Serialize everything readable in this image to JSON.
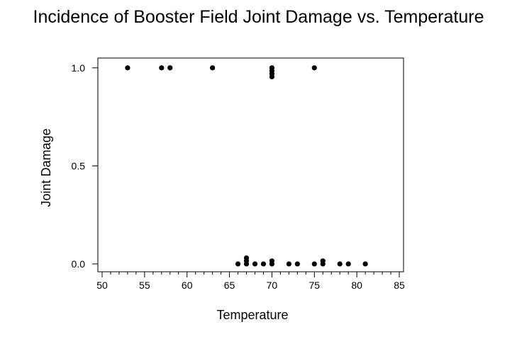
{
  "chart_data": {
    "type": "scatter",
    "title": "Incidence of Booster Field Joint Damage vs. Temperature",
    "xlabel": "Temperature",
    "ylabel": "Joint Damage",
    "xlim": [
      49.5,
      85.5
    ],
    "ylim": [
      -0.04,
      1.05
    ],
    "xticks": [
      50,
      55,
      60,
      65,
      70,
      75,
      80,
      85
    ],
    "xtick_labels": [
      "50",
      "55",
      "60",
      "65",
      "70",
      "75",
      "80",
      "85"
    ],
    "yticks": [
      0.0,
      0.5,
      1.0
    ],
    "ytick_labels": [
      "0.0",
      "0.5",
      "1.0"
    ],
    "grid": false,
    "legend": "none",
    "marker_color": "#000000",
    "points": [
      {
        "x": 53,
        "y": 1.0
      },
      {
        "x": 57,
        "y": 1.0
      },
      {
        "x": 58,
        "y": 1.0
      },
      {
        "x": 63,
        "y": 1.0
      },
      {
        "x": 70,
        "y": 1.0
      },
      {
        "x": 70,
        "y": 1.0
      },
      {
        "x": 70,
        "y": 1.0
      },
      {
        "x": 70,
        "y": 1.0
      },
      {
        "x": 75,
        "y": 1.0
      },
      {
        "x": 66,
        "y": 0.0
      },
      {
        "x": 67,
        "y": 0.0
      },
      {
        "x": 67,
        "y": 0.0
      },
      {
        "x": 67,
        "y": 0.0
      },
      {
        "x": 68,
        "y": 0.0
      },
      {
        "x": 69,
        "y": 0.0
      },
      {
        "x": 70,
        "y": 0.0
      },
      {
        "x": 70,
        "y": 0.0
      },
      {
        "x": 72,
        "y": 0.0
      },
      {
        "x": 73,
        "y": 0.0
      },
      {
        "x": 75,
        "y": 0.0
      },
      {
        "x": 76,
        "y": 0.0
      },
      {
        "x": 76,
        "y": 0.0
      },
      {
        "x": 78,
        "y": 0.0
      },
      {
        "x": 79,
        "y": 0.0
      },
      {
        "x": 81,
        "y": 0.0
      }
    ]
  }
}
